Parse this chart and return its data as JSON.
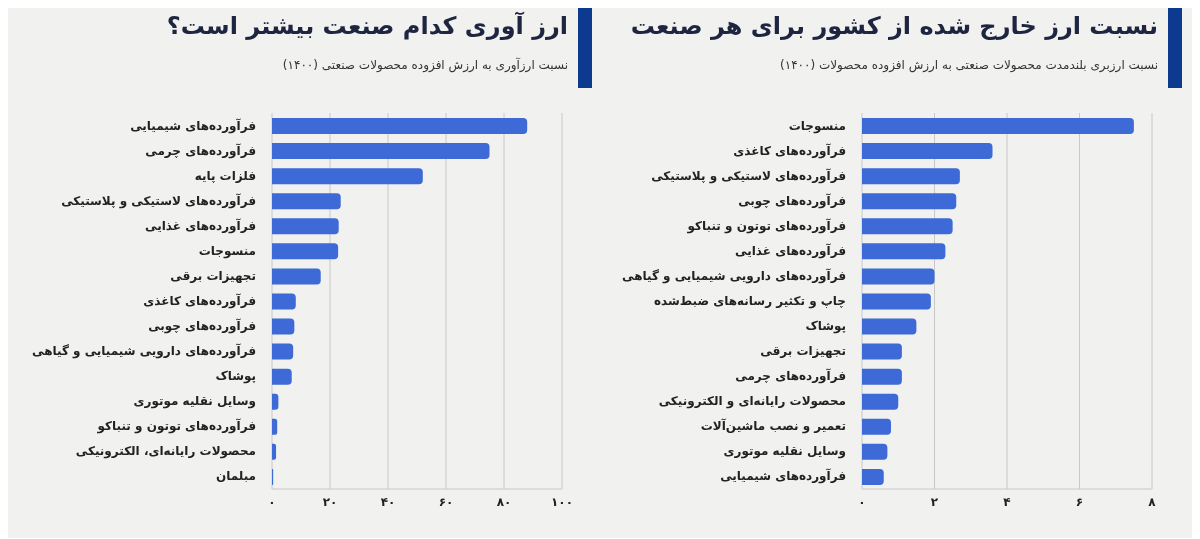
{
  "chart_data": [
    {
      "type": "bar",
      "orientation": "horizontal",
      "title": "نسبت ارز خارج شده از کشور برای هر صنعت",
      "subtitle": "نسبت ارزبری بلندمدت محصولات صنعتی به ارزش افزوده محصولات (۱۴۰۰)",
      "categories": [
        "منسوجات",
        "فرآورده‌های کاغذی",
        "فرآورده‌های لاستیکی و پلاستیکی",
        "فرآورده‌های چوبی",
        "فرآورده‌های توتون و تنباکو",
        "فرآورده‌های غذایی",
        "فرآورده‌های دارویی شیمیایی و گیاهی",
        "چاپ و تکثیر رسانه‌های ضبط‌شده",
        "پوشاک",
        "تجهیزات برقی",
        "فرآورده‌های چرمی",
        "محصولات رایانه‌ای و الکترونیکی",
        "تعمیر و نصب ماشین‌آلات",
        "وسایل نقلیه موتوری",
        "فرآورده‌های شیمیایی"
      ],
      "values": [
        7.5,
        3.6,
        2.7,
        2.6,
        2.5,
        2.3,
        2.0,
        1.9,
        1.5,
        1.1,
        1.1,
        1.0,
        0.8,
        0.7,
        0.6
      ],
      "color": "#3d6ad6",
      "xlim": [
        0,
        8
      ],
      "xticks": [
        {
          "value": 0,
          "label": "۰"
        },
        {
          "value": 2,
          "label": "۲"
        },
        {
          "value": 4,
          "label": "۴"
        },
        {
          "value": 6,
          "label": "۶"
        },
        {
          "value": 8,
          "label": "۸"
        }
      ],
      "grid": "x"
    },
    {
      "type": "bar",
      "orientation": "horizontal",
      "title": "ارز آوری کدام صنعت بیشتر است؟",
      "subtitle": "نسبت ارزآوری به ارزش افزوده محصولات صنعتی (۱۴۰۰)",
      "categories": [
        "فرآورده‌های شیمیایی",
        "فرآورده‌های چرمی",
        "فلزات پایه",
        "فرآورده‌های لاستیکی و پلاستیکی",
        "فرآورده‌های غذایی",
        "منسوجات",
        "تجهیزات برقی",
        "فرآورده‌های کاغذی",
        "فرآورده‌های چوبی",
        "فرآورده‌های دارویی شیمیایی و گیاهی",
        "پوشاک",
        "وسایل نقلیه موتوری",
        "فرآورده‌های توتون و تنباکو",
        "محصولات رایانه‌ای، الکترونیکی",
        "مبلمان"
      ],
      "values": [
        88,
        75,
        52,
        23.7,
        23,
        22.8,
        16.8,
        8.2,
        7.7,
        7.3,
        6.8,
        2.2,
        1.8,
        1.4,
        0.4
      ],
      "color": "#3d6ad6",
      "xlim": [
        0,
        100
      ],
      "xticks": [
        {
          "value": 0,
          "label": "۰"
        },
        {
          "value": 20,
          "label": "۲۰"
        },
        {
          "value": 40,
          "label": "۴۰"
        },
        {
          "value": 60,
          "label": "۶۰"
        },
        {
          "value": 80,
          "label": "۸۰"
        },
        {
          "value": 100,
          "label": "۱۰۰"
        }
      ],
      "grid": "x"
    }
  ]
}
